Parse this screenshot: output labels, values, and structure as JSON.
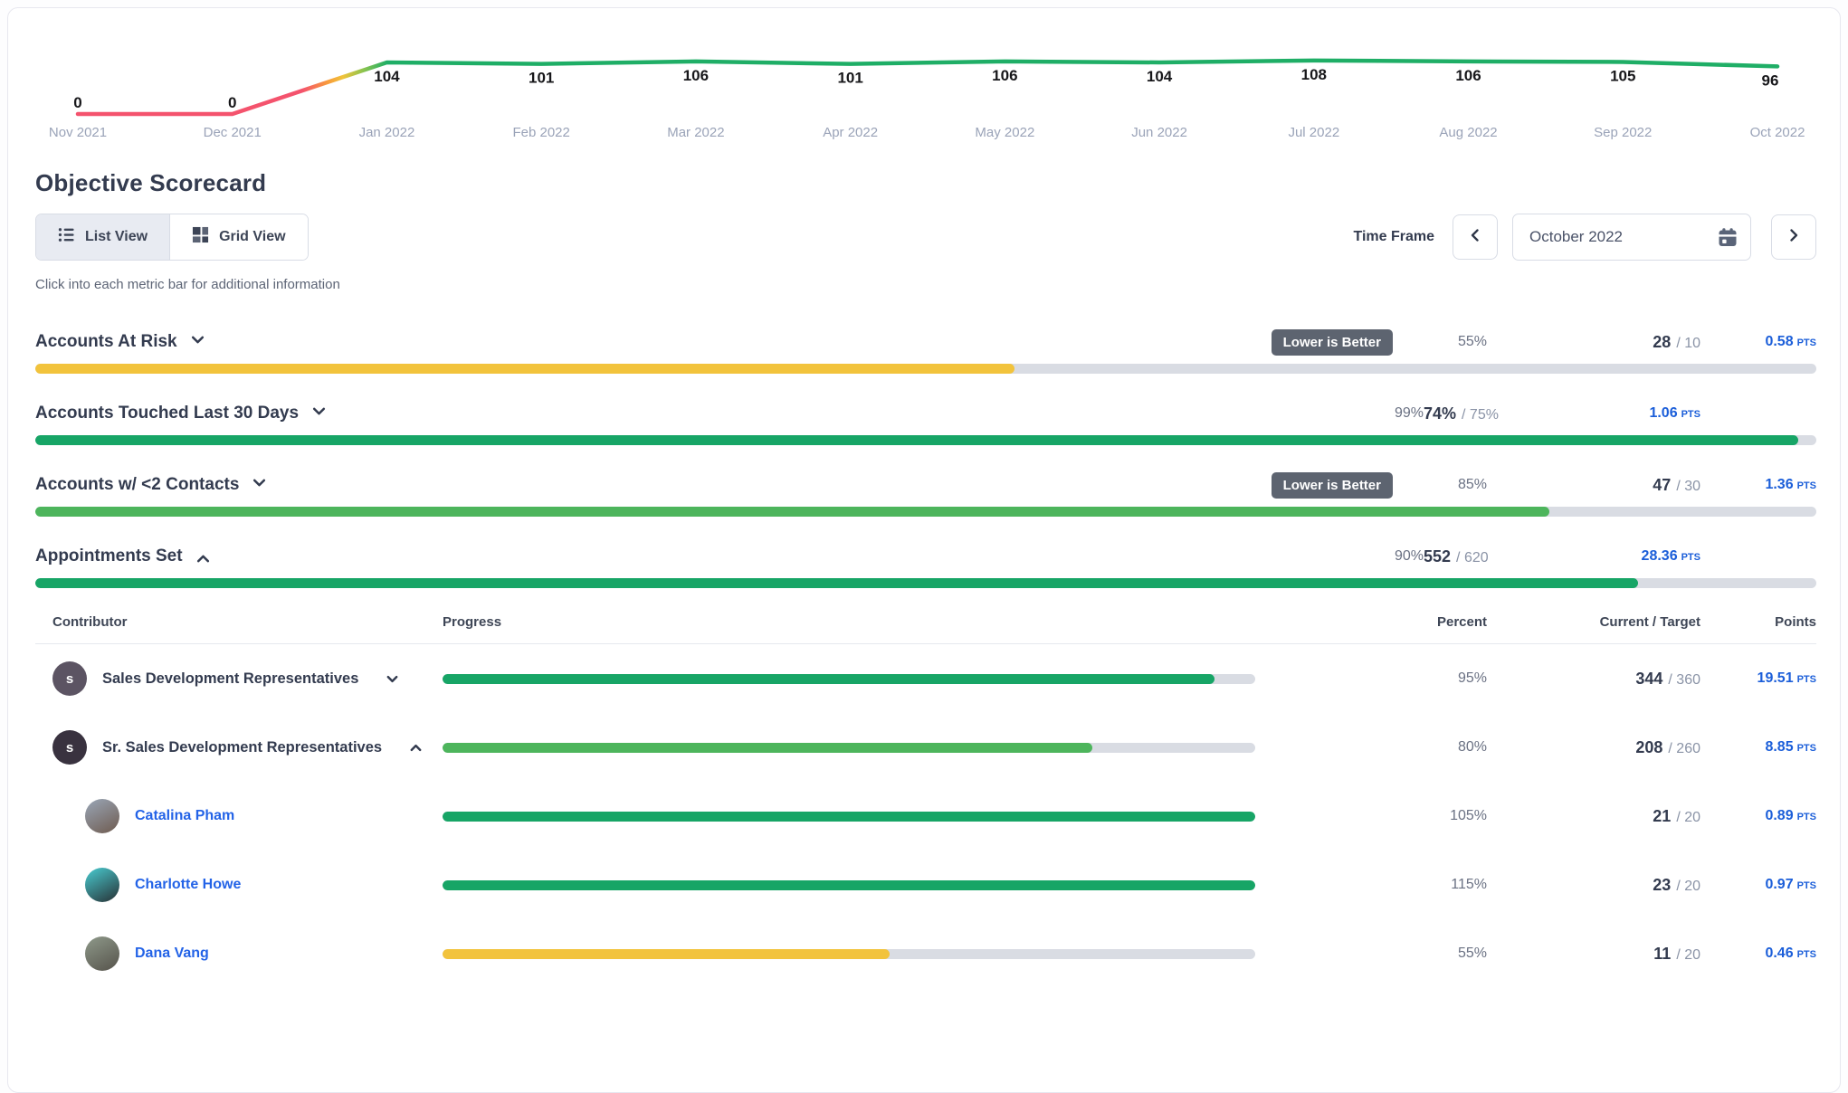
{
  "labels": {
    "pts": "PTS"
  },
  "chart_data": {
    "type": "line",
    "x": [
      "Nov 2021",
      "Dec 2021",
      "Jan 2022",
      "Feb 2022",
      "Mar 2022",
      "Apr 2022",
      "May 2022",
      "Jun 2022",
      "Jul 2022",
      "Aug 2022",
      "Sep 2022",
      "Oct 2022"
    ],
    "values": [
      0,
      0,
      104,
      101,
      106,
      101,
      106,
      104,
      108,
      106,
      105,
      96
    ],
    "ylim": [
      0,
      120
    ],
    "grid": false,
    "line_gradient": {
      "red": "#f4536d",
      "orange": "#f89b3c",
      "yellow": "#f0c33a",
      "light_green": "#8cc44f",
      "green": "#1fae66"
    },
    "value_label_color": "#17171a",
    "axis_label_color": "#9aa3b8"
  },
  "header": {
    "title": "Objective Scorecard",
    "views": [
      {
        "label": "List View",
        "active": true
      },
      {
        "label": "Grid View",
        "active": false
      }
    ],
    "time_frame_label": "Time Frame",
    "date_value": "October 2022",
    "hint": "Click into each metric bar for additional information"
  },
  "metrics": [
    {
      "name": "Accounts At Risk",
      "expanded": false,
      "badge": "Lower is Better",
      "percent": "55%",
      "current": "28",
      "target": "/ 10",
      "points": "0.58",
      "bar_pct": 55,
      "bar_color": "#f2c33c"
    },
    {
      "name": "Accounts Touched Last 30 Days",
      "expanded": false,
      "badge": null,
      "percent": "99%",
      "current": "74%",
      "target": "/ 75%",
      "points": "1.06",
      "bar_pct": 99,
      "bar_color": "#17a566"
    },
    {
      "name": "Accounts w/ <2 Contacts",
      "expanded": false,
      "badge": "Lower is Better",
      "percent": "85%",
      "current": "47",
      "target": "/ 30",
      "points": "1.36",
      "bar_pct": 85,
      "bar_color": "#4db55c"
    },
    {
      "name": "Appointments Set",
      "expanded": true,
      "badge": null,
      "percent": "90%",
      "current": "552",
      "target": "/ 620",
      "points": "28.36",
      "bar_pct": 90,
      "bar_color": "#17a566"
    }
  ],
  "table": {
    "columns": {
      "contributor": "Contributor",
      "progress": "Progress",
      "percent": "Percent",
      "current_target": "Current / Target",
      "points": "Points"
    },
    "rows": [
      {
        "kind": "team",
        "name": "Sales Development Representatives",
        "expanded": false,
        "avatar_text": "s",
        "avatar_colors": [
          "#5c5463",
          "#5c5463"
        ],
        "percent": "95%",
        "current": "344",
        "target": "/ 360",
        "points": "19.51",
        "bar_pct": 95,
        "bar_color": "#17a566"
      },
      {
        "kind": "team",
        "name": "Sr. Sales Development Representatives",
        "expanded": true,
        "avatar_text": "s",
        "avatar_colors": [
          "#39323f",
          "#39323f"
        ],
        "percent": "80%",
        "current": "208",
        "target": "/ 260",
        "points": "8.85",
        "bar_pct": 80,
        "bar_color": "#4db55c"
      },
      {
        "kind": "person",
        "name": "Catalina Pham",
        "avatar_text": "",
        "avatar_colors": [
          "#9aa7b8",
          "#6e5a4e"
        ],
        "percent": "105%",
        "current": "21",
        "target": "/ 20",
        "points": "0.89",
        "bar_pct": 100,
        "bar_color": "#17a566"
      },
      {
        "kind": "person",
        "name": "Charlotte Howe",
        "avatar_text": "",
        "avatar_colors": [
          "#49cdd2",
          "#273034"
        ],
        "percent": "115%",
        "current": "23",
        "target": "/ 20",
        "points": "0.97",
        "bar_pct": 100,
        "bar_color": "#17a566"
      },
      {
        "kind": "person",
        "name": "Dana Vang",
        "avatar_text": "",
        "avatar_colors": [
          "#8f9a8b",
          "#55524a"
        ],
        "percent": "55%",
        "current": "11",
        "target": "/ 20",
        "points": "0.46",
        "bar_pct": 55,
        "bar_color": "#f2c33c"
      }
    ]
  }
}
